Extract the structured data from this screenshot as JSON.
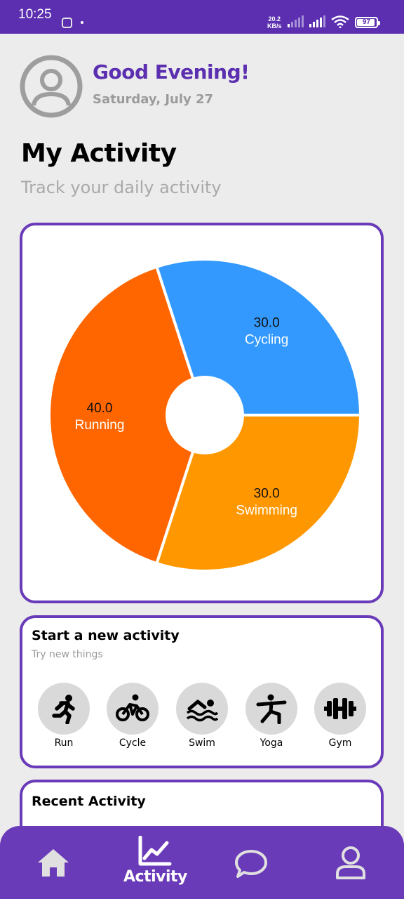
{
  "status_bar": {
    "time": "10:25",
    "net_speed_value": "20.2",
    "net_speed_unit": "KB/s",
    "battery": "97",
    "icons": [
      "app-notification-icon",
      "signal-icon",
      "wifi-icon",
      "battery-icon"
    ]
  },
  "header": {
    "greeting": "Good Evening!",
    "date": "Saturday, July 27",
    "avatar_icon": "user-icon"
  },
  "page": {
    "title": "My Activity",
    "subtitle": "Track your daily activity"
  },
  "chart_data": {
    "type": "pie",
    "donut": true,
    "slices": [
      {
        "label": "Swimming",
        "value": 30.0,
        "value_text": "30.0",
        "color": "#ff9800"
      },
      {
        "label": "Running",
        "value": 40.0,
        "value_text": "40.0",
        "color": "#ff6600"
      },
      {
        "label": "Cycling",
        "value": 30.0,
        "value_text": "30.0",
        "color": "#3399ff"
      }
    ],
    "start_angle_deg": 0,
    "direction": "clockwise"
  },
  "start_activity": {
    "title": "Start a new activity",
    "subtitle": "Try new things",
    "items": [
      {
        "label": "Run",
        "icon": "run-icon"
      },
      {
        "label": "Cycle",
        "icon": "bike-icon"
      },
      {
        "label": "Swim",
        "icon": "swim-icon"
      },
      {
        "label": "Yoga",
        "icon": "yoga-icon"
      },
      {
        "label": "Gym",
        "icon": "dumbbell-icon"
      }
    ]
  },
  "recent": {
    "title": "Recent Activity"
  },
  "bottom_nav": {
    "items": [
      {
        "label": "",
        "icon": "home-icon"
      },
      {
        "label": "Activity",
        "icon": "chart-icon",
        "active": true
      },
      {
        "label": "",
        "icon": "chat-icon"
      },
      {
        "label": "",
        "icon": "profile-icon"
      }
    ]
  },
  "colors": {
    "accent": "#6a3bb8",
    "status_bar": "#5b2fb0",
    "background": "#ececec"
  }
}
